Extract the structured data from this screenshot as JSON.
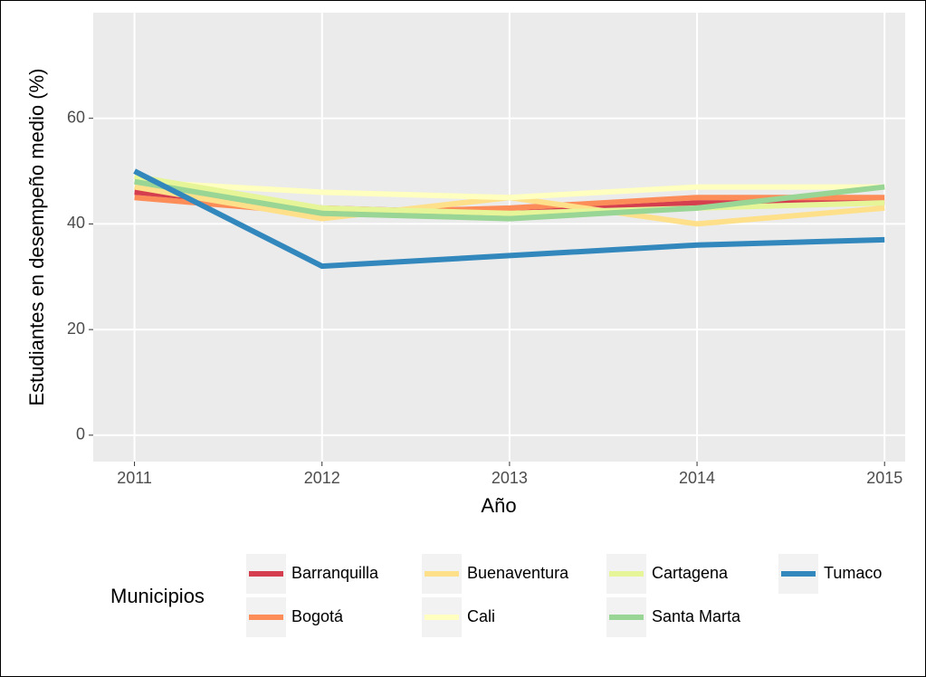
{
  "chart_data": {
    "type": "line",
    "x": [
      2011,
      2012,
      2013,
      2014,
      2015
    ],
    "xlim": [
      2010.78,
      2015.11
    ],
    "xticks": [
      2011,
      2012,
      2013,
      2014,
      2015
    ],
    "ylim": [
      -5,
      80
    ],
    "yticks": [
      0,
      20,
      40,
      60
    ],
    "xlabel": "Año",
    "ylabel": "Estudiantes en desempeño medio (%)",
    "legend_title": "Municipios",
    "grid": true,
    "series": [
      {
        "name": "Barranquilla",
        "color": "#d53e4f",
        "values": [
          46,
          43,
          42,
          44,
          44
        ]
      },
      {
        "name": "Bogotá",
        "color": "#fc8d59",
        "values": [
          45,
          42,
          43,
          45,
          45
        ]
      },
      {
        "name": "Buenaventura",
        "color": "#fee08b",
        "values": [
          47,
          41,
          45,
          40,
          43
        ]
      },
      {
        "name": "Cali",
        "color": "#ffffbf",
        "values": [
          48,
          46,
          45,
          47,
          47
        ]
      },
      {
        "name": "Cartagena",
        "color": "#e6f598",
        "values": [
          49,
          43,
          42,
          43,
          44
        ]
      },
      {
        "name": "Santa Marta",
        "color": "#99d594",
        "values": [
          48,
          42,
          41,
          43,
          47
        ]
      },
      {
        "name": "Tumaco",
        "color": "#3288bd",
        "values": [
          50,
          32,
          34,
          36,
          37
        ]
      }
    ]
  }
}
